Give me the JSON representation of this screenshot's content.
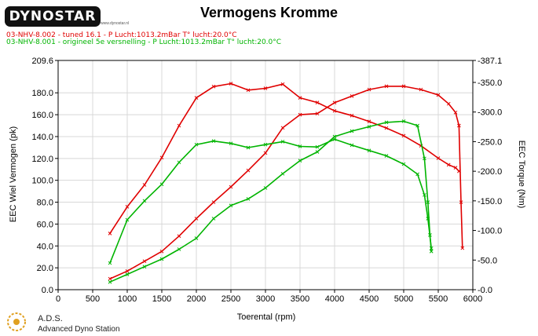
{
  "header": {
    "logo_text": "DYNOSTAR",
    "logo_sub": "www.dynostar.nl",
    "title": "Vermogens Kromme"
  },
  "legend": {
    "run1": "03-NHV-8.002 - tuned 16.1  - P Lucht:1013.2mBar T° lucht:20.0°C",
    "run2": "03-NHV-8.001 - origineel 5e versnelling  - P Lucht:1013.2mBar T° lucht:20.0°C"
  },
  "footer": {
    "brand": "A.D.S.",
    "subtitle": "Advanced Dyno Station"
  },
  "colors": {
    "tuned": "#e00000",
    "original": "#00b400",
    "grid": "#d8d8d8",
    "axis": "#000000"
  },
  "chart_data": {
    "type": "line",
    "title": "Vermogens Kromme",
    "xlabel": "Toerental (rpm)",
    "ylabel": "EEC Wiel Vermogen (pk)",
    "y2label": "EEC Torque (Nm)",
    "xlim": [
      0,
      6000
    ],
    "ylim": [
      0,
      209.6
    ],
    "y2lim": [
      0,
      387.1
    ],
    "x_ticks": [
      0,
      500,
      1000,
      1500,
      2000,
      2500,
      3000,
      3500,
      4000,
      4500,
      5000,
      5500,
      6000
    ],
    "y_tick_labels": [
      "0.0",
      "20.0",
      "40.0",
      "60.0",
      "80.0",
      "100.0",
      "120.0",
      "140.0",
      "160.0",
      "180.0",
      "209.6"
    ],
    "y_ticks": [
      0,
      20,
      40,
      60,
      80,
      100,
      120,
      140,
      160,
      180,
      209.6
    ],
    "y2_tick_labels": [
      "-0.0",
      "-50.0",
      "-100.0",
      "-150.0",
      "-200.0",
      "-250.0",
      "-300.0",
      "-350.0",
      "-387.1"
    ],
    "y2_ticks": [
      0,
      50,
      100,
      150,
      200,
      250,
      300,
      350,
      387.1
    ],
    "grid": true,
    "series": [
      {
        "name": "03-NHV-8.002 - tuned 16.1",
        "kind": "power",
        "axis": "left",
        "color": "#e00000",
        "x": [
          750,
          1000,
          1250,
          1500,
          1750,
          2000,
          2250,
          2500,
          2750,
          3000,
          3250,
          3500,
          3750,
          4000,
          4250,
          4500,
          4750,
          5000,
          5250,
          5500,
          5650,
          5750,
          5800,
          5830,
          5850
        ],
        "y": [
          10,
          17,
          26,
          35,
          49,
          65,
          80,
          94,
          109,
          125,
          148,
          160,
          161,
          171,
          177,
          183,
          186,
          186,
          183,
          178,
          170,
          162,
          150,
          80,
          38
        ]
      },
      {
        "name": "03-NHV-8.002 - tuned 16.1",
        "kind": "torque",
        "axis": "right",
        "color": "#e00000",
        "x": [
          750,
          1000,
          1250,
          1500,
          1750,
          2000,
          2250,
          2500,
          2750,
          3000,
          3250,
          3500,
          3750,
          4000,
          4250,
          4500,
          4750,
          5000,
          5250,
          5500,
          5650,
          5750,
          5800
        ],
        "y": [
          95,
          140,
          177,
          223,
          277,
          324,
          343,
          348,
          337,
          340,
          347,
          324,
          316,
          302,
          294,
          284,
          273,
          260,
          243,
          222,
          211,
          206,
          200
        ]
      },
      {
        "name": "03-NHV-8.001 - origineel 5e versnelling",
        "kind": "power",
        "axis": "left",
        "color": "#00b400",
        "x": [
          750,
          1000,
          1250,
          1500,
          1750,
          2000,
          2250,
          2500,
          2750,
          3000,
          3250,
          3500,
          3750,
          4000,
          4250,
          4500,
          4750,
          5000,
          5200,
          5300,
          5350,
          5380,
          5400
        ],
        "y": [
          7,
          14,
          21,
          28,
          37,
          47,
          65,
          77,
          83,
          93,
          106,
          118,
          126,
          140,
          145,
          149,
          153,
          154,
          150,
          120,
          80,
          50,
          35
        ]
      },
      {
        "name": "03-NHV-8.001 - origineel 5e versnelling",
        "kind": "torque",
        "axis": "right",
        "color": "#00b400",
        "x": [
          750,
          1000,
          1250,
          1500,
          1750,
          2000,
          2250,
          2500,
          2750,
          3000,
          3250,
          3500,
          3750,
          4000,
          4250,
          4500,
          4750,
          5000,
          5200,
          5300,
          5350,
          5400
        ],
        "y": [
          45,
          118,
          150,
          178,
          215,
          245,
          251,
          247,
          240,
          245,
          250,
          242,
          241,
          254,
          244,
          235,
          226,
          212,
          195,
          160,
          120,
          70
        ]
      }
    ]
  }
}
